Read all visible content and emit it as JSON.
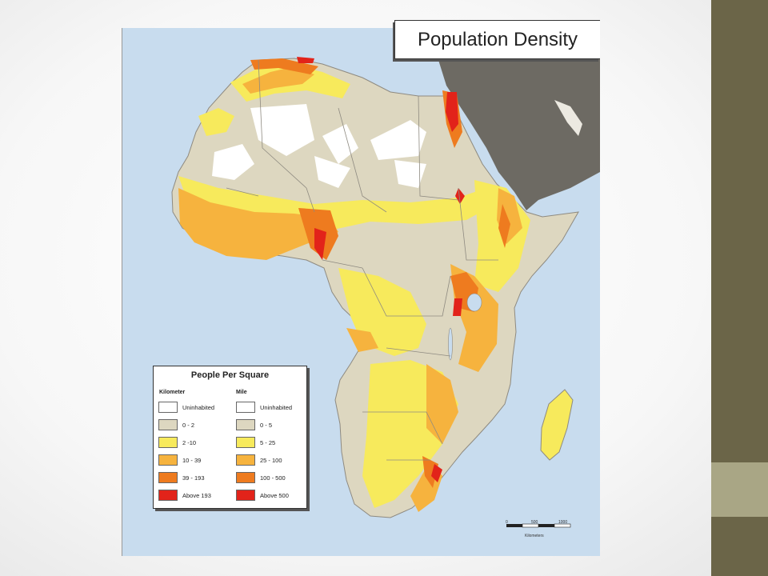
{
  "title": "Population Density",
  "legend": {
    "title": "People Per Square",
    "col1_head": "Kilometer",
    "col2_head": "Mile",
    "items": [
      {
        "km": "Uninhabited",
        "mile": "Uninhabited",
        "color": "#ffffff"
      },
      {
        "km": "0 - 2",
        "mile": "0 - 5",
        "color": "#ddd7c0"
      },
      {
        "km": "2 -10",
        "mile": "5 - 25",
        "color": "#f7ea5c"
      },
      {
        "km": "10 - 39",
        "mile": "25 - 100",
        "color": "#f6b33e"
      },
      {
        "km": "39 - 193",
        "mile": "100 - 500",
        "color": "#ee7b1f"
      },
      {
        "km": "Above 193",
        "mile": "Above 500",
        "color": "#e2231a"
      }
    ]
  },
  "scale": {
    "ticks": [
      "0",
      "500",
      "1000"
    ],
    "unit": "Kilometers"
  },
  "colors": {
    "ocean": "#c8dcee",
    "land_other": "#6d6a63",
    "sidebar_dark": "#6b6548",
    "sidebar_light": "#a9a685"
  }
}
